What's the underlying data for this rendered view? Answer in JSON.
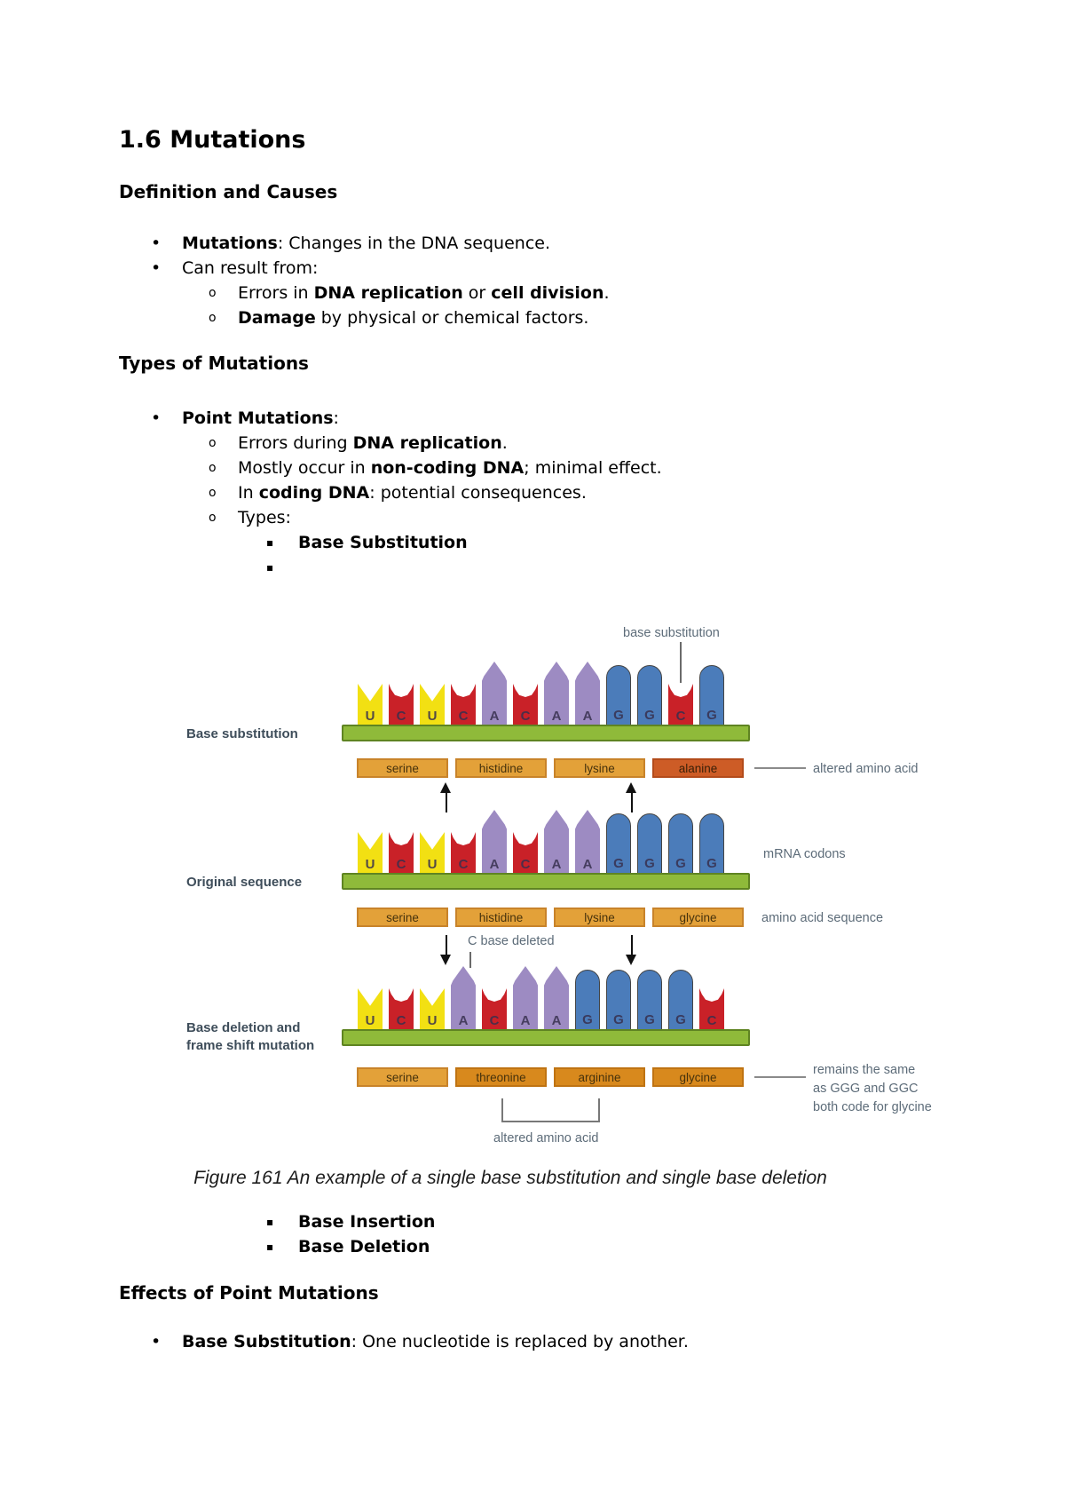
{
  "doc": {
    "title": "1.6 Mutations",
    "sec1_heading": "Definition and Causes",
    "sec2_heading": "Types of Mutations",
    "sec3_heading": "Effects of Point Mutations",
    "blockA": [
      {
        "level": 1,
        "marker": "disc",
        "segments": [
          {
            "t": "Mutations",
            "b": true
          },
          {
            "t": ": Changes in the DNA sequence."
          }
        ]
      },
      {
        "level": 1,
        "marker": "disc",
        "segments": [
          {
            "t": "Can result from:"
          }
        ]
      },
      {
        "level": 2,
        "marker": "circle",
        "segments": [
          {
            "t": "Errors in "
          },
          {
            "t": "DNA replication",
            "b": true
          },
          {
            "t": " or "
          },
          {
            "t": "cell division",
            "b": true
          },
          {
            "t": "."
          }
        ]
      },
      {
        "level": 2,
        "marker": "circle",
        "segments": [
          {
            "t": "Damage",
            "b": true
          },
          {
            "t": " by physical or chemical factors."
          }
        ]
      }
    ],
    "blockB": [
      {
        "level": 1,
        "marker": "disc",
        "segments": [
          {
            "t": "Point Mutations",
            "b": true
          },
          {
            "t": ":"
          }
        ]
      },
      {
        "level": 2,
        "marker": "circle",
        "segments": [
          {
            "t": "Errors during "
          },
          {
            "t": "DNA replication",
            "b": true
          },
          {
            "t": "."
          }
        ]
      },
      {
        "level": 2,
        "marker": "circle",
        "segments": [
          {
            "t": "Mostly occur in "
          },
          {
            "t": "non-coding DNA",
            "b": true
          },
          {
            "t": "; minimal effect."
          }
        ]
      },
      {
        "level": 2,
        "marker": "circle",
        "segments": [
          {
            "t": "In "
          },
          {
            "t": "coding DNA",
            "b": true
          },
          {
            "t": ": potential consequences."
          }
        ]
      },
      {
        "level": 2,
        "marker": "circle",
        "segments": [
          {
            "t": "Types:"
          }
        ]
      },
      {
        "level": 3,
        "marker": "square",
        "segments": [
          {
            "t": "Base Substitution",
            "b": true
          }
        ]
      },
      {
        "level": 3,
        "marker": "square",
        "segments": [
          {
            "t": ""
          }
        ]
      }
    ],
    "blockC": [
      {
        "level": 3,
        "marker": "square",
        "segments": [
          {
            "t": "Base Insertion",
            "b": true
          }
        ]
      },
      {
        "level": 3,
        "marker": "square",
        "segments": [
          {
            "t": "Base Deletion",
            "b": true
          }
        ]
      }
    ],
    "blockD": [
      {
        "level": 1,
        "marker": "disc",
        "segments": [
          {
            "t": "Base Substitution",
            "b": true
          },
          {
            "t": ": One nucleotide is replaced by another."
          }
        ]
      }
    ]
  },
  "figure": {
    "caption": "Figure 161 An example of a single base substitution and single base deletion",
    "pointer_label": "base substitution",
    "rows": [
      {
        "label": "Base substitution",
        "seq": [
          "U",
          "C",
          "U",
          "C",
          "A",
          "C",
          "A",
          "A",
          "G",
          "G",
          "C",
          "G"
        ],
        "amino": [
          {
            "t": "serine",
            "s": "normal"
          },
          {
            "t": "histidine",
            "s": "normal"
          },
          {
            "t": "lysine",
            "s": "normal"
          },
          {
            "t": "alanine",
            "s": "altered"
          }
        ]
      },
      {
        "label": "Original sequence",
        "seq": [
          "U",
          "C",
          "U",
          "C",
          "A",
          "C",
          "A",
          "A",
          "G",
          "G",
          "G",
          "G"
        ],
        "amino": [
          {
            "t": "serine",
            "s": "normal"
          },
          {
            "t": "histidine",
            "s": "normal"
          },
          {
            "t": "lysine",
            "s": "normal"
          },
          {
            "t": "glycine",
            "s": "normal"
          }
        ]
      },
      {
        "label": "Base deletion and\nframe shift mutation",
        "seq": [
          "U",
          "C",
          "U",
          "A",
          "C",
          "A",
          "A",
          "G",
          "G",
          "G",
          "G",
          "C"
        ],
        "amino": [
          {
            "t": "serine",
            "s": "normal"
          },
          {
            "t": "threonine",
            "s": "dark"
          },
          {
            "t": "arginine",
            "s": "dark"
          },
          {
            "t": "glycine",
            "s": "dark"
          }
        ]
      }
    ],
    "annotations": {
      "altered_amino_acid_top": "altered amino acid",
      "mrna_codons": "mRNA codons",
      "amino_acid_sequence": "amino acid sequence",
      "c_base_deleted": "C base deleted",
      "remains_text": "remains the same\nas GGG and GGC\nboth code for glycine",
      "altered_amino_acid_bottom": "altered amino acid"
    },
    "colors": {
      "base_U": "#f2e013",
      "base_C": "#c92128",
      "base_A": "#9d8bc2",
      "base_G": "#4b7cba",
      "backbone": "#8fba3a",
      "amino_normal": "#e3a139",
      "amino_dark": "#d8891d",
      "amino_altered": "#cd5c26"
    }
  }
}
